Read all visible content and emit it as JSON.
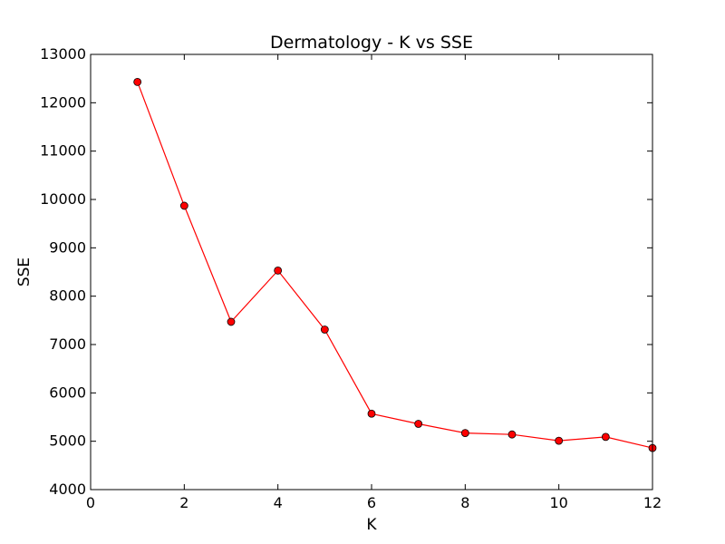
{
  "chart_data": {
    "type": "line",
    "title": "Dermatology - K vs SSE",
    "xlabel": "K",
    "ylabel": "SSE",
    "xlim": [
      0,
      12
    ],
    "ylim": [
      4000,
      13000
    ],
    "xticks": [
      "0",
      "2",
      "4",
      "6",
      "8",
      "10",
      "12"
    ],
    "yticks": [
      "4000",
      "5000",
      "6000",
      "7000",
      "8000",
      "9000",
      "10000",
      "11000",
      "12000",
      "13000"
    ],
    "grid": false,
    "legend": "none",
    "series": [
      {
        "x": [
          1,
          2,
          3,
          4,
          5,
          6,
          7,
          8,
          9,
          10,
          11,
          12
        ],
        "y": [
          12430,
          9870,
          7470,
          8530,
          7310,
          5570,
          5360,
          5170,
          5140,
          5010,
          5090,
          4860
        ],
        "line_color": "#ff0000",
        "marker": "circle",
        "marker_color": "#ff0000"
      }
    ]
  }
}
